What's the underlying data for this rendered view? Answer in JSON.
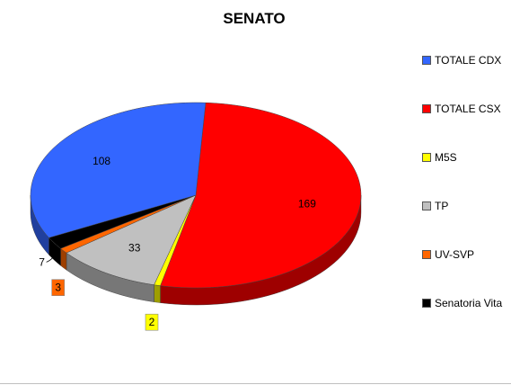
{
  "chart_data": {
    "type": "pie",
    "title": "SENATO",
    "slices": [
      {
        "label": "TOTALE CSX",
        "value": 169,
        "color": "#ff0000",
        "data_label": "169"
      },
      {
        "label": "M5S",
        "value": 2,
        "color": "#ffff00",
        "data_label": "2"
      },
      {
        "label": "TP",
        "value": 33,
        "color": "#c0c0c0",
        "data_label": "33"
      },
      {
        "label": "UV-SVP",
        "value": 3,
        "color": "#ff6600",
        "data_label": "3"
      },
      {
        "label": "Senatoria Vita",
        "value": 7,
        "color": "#000000",
        "data_label": "7"
      },
      {
        "label": "TOTALE CDX",
        "value": 108,
        "color": "#3366ff",
        "data_label": "108"
      }
    ],
    "legend": [
      "TOTALE CDX",
      "TOTALE CSX",
      "M5S",
      "TP",
      "UV-SVP",
      "Senatoria Vita"
    ],
    "legend_position": "right",
    "style": "3d"
  }
}
